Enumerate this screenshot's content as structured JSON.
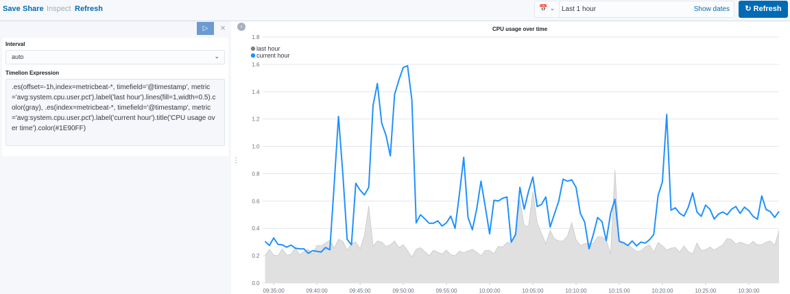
{
  "topnav": {
    "save": "Save",
    "share": "Share",
    "inspect": "Inspect",
    "refresh": "Refresh"
  },
  "datepicker": {
    "range": "Last 1 hour",
    "show_dates": "Show dates",
    "refresh_button": "Refresh",
    "icon": "calendar-icon"
  },
  "editor": {
    "interval_label": "Interval",
    "interval_value": "auto",
    "expression_label": "Timelion Expression",
    "expression": ".es(offset=-1h,index=metricbeat-*, timefield='@timestamp', metric='avg:system.cpu.user.pct').label('last hour').lines(fill=1,width=0.5).color(gray), .es(index=metricbeat-*, timefield='@timestamp', metric='avg:system.cpu.user.pct').label('current hour').title('CPU usage over time').color(#1E90FF)"
  },
  "chart_data": {
    "type": "line",
    "title": "CPU usage over time",
    "ylim": [
      0,
      1.8
    ],
    "yticks": [
      "0.0",
      "0.2",
      "0.4",
      "0.6",
      "0.8",
      "1.0",
      "1.2",
      "1.4",
      "1.6",
      "1.8"
    ],
    "xlim": [
      "09:34:00",
      "10:33:30"
    ],
    "xticks": [
      "09:35:00",
      "09:40:00",
      "09:45:00",
      "09:50:00",
      "09:55:00",
      "10:00:00",
      "10:05:00",
      "10:10:00",
      "10:15:00",
      "10:20:00",
      "10:25:00",
      "10:30:00"
    ],
    "grid": true,
    "legend": "top-left",
    "x": [
      "09:34:00",
      "09:34:30",
      "09:35:00",
      "09:35:30",
      "09:36:00",
      "09:36:30",
      "09:37:00",
      "09:37:30",
      "09:38:00",
      "09:38:30",
      "09:39:00",
      "09:39:30",
      "09:40:00",
      "09:40:30",
      "09:41:00",
      "09:41:30",
      "09:42:00",
      "09:42:30",
      "09:43:00",
      "09:43:30",
      "09:44:00",
      "09:44:30",
      "09:45:00",
      "09:45:30",
      "09:46:00",
      "09:46:30",
      "09:47:00",
      "09:47:30",
      "09:48:00",
      "09:48:30",
      "09:49:00",
      "09:49:30",
      "09:50:00",
      "09:50:30",
      "09:51:00",
      "09:51:30",
      "09:52:00",
      "09:52:30",
      "09:53:00",
      "09:53:30",
      "09:54:00",
      "09:54:30",
      "09:55:00",
      "09:55:30",
      "09:56:00",
      "09:56:30",
      "09:57:00",
      "09:57:30",
      "09:58:00",
      "09:58:30",
      "09:59:00",
      "09:59:30",
      "10:00:00",
      "10:00:30",
      "10:01:00",
      "10:01:30",
      "10:02:00",
      "10:02:30",
      "10:03:00",
      "10:03:30",
      "10:04:00",
      "10:04:30",
      "10:05:00",
      "10:05:30",
      "10:06:00",
      "10:06:30",
      "10:07:00",
      "10:07:30",
      "10:08:00",
      "10:08:30",
      "10:09:00",
      "10:09:30",
      "10:10:00",
      "10:10:30",
      "10:11:00",
      "10:11:30",
      "10:12:00",
      "10:12:30",
      "10:13:00",
      "10:13:30",
      "10:14:00",
      "10:14:30",
      "10:15:00",
      "10:15:30",
      "10:16:00",
      "10:16:30",
      "10:17:00",
      "10:17:30",
      "10:18:00",
      "10:18:30",
      "10:19:00",
      "10:19:30",
      "10:20:00",
      "10:20:30",
      "10:21:00",
      "10:21:30",
      "10:22:00",
      "10:22:30",
      "10:23:00",
      "10:23:30",
      "10:24:00",
      "10:24:30",
      "10:25:00",
      "10:25:30",
      "10:26:00",
      "10:26:30",
      "10:27:00",
      "10:27:30",
      "10:28:00",
      "10:28:30",
      "10:29:00",
      "10:29:30",
      "10:30:00",
      "10:30:30",
      "10:31:00",
      "10:31:30",
      "10:32:00",
      "10:32:30",
      "10:33:00",
      "10:33:30"
    ],
    "series": [
      {
        "name": "last hour",
        "color": "#808080",
        "fill": 1,
        "values": [
          0.2,
          0.247,
          0.205,
          0.2,
          0.25,
          0.205,
          0.21,
          0.26,
          0.205,
          0.23,
          0.247,
          0.213,
          0.275,
          0.272,
          0.293,
          0.313,
          0.255,
          0.32,
          0.305,
          0.24,
          0.29,
          0.3,
          0.25,
          0.35,
          0.563,
          0.27,
          0.308,
          0.3,
          0.267,
          0.28,
          0.308,
          0.258,
          0.28,
          0.238,
          0.188,
          0.247,
          0.258,
          0.23,
          0.2,
          0.24,
          0.225,
          0.213,
          0.24,
          0.208,
          0.2,
          0.233,
          0.222,
          0.235,
          0.247,
          0.225,
          0.2,
          0.24,
          0.238,
          0.213,
          0.268,
          0.263,
          0.297,
          0.292,
          0.372,
          0.613,
          0.42,
          0.413,
          0.67,
          0.44,
          0.363,
          0.288,
          0.385,
          0.322,
          0.308,
          0.308,
          0.342,
          0.442,
          0.318,
          0.275,
          0.288,
          0.292,
          0.288,
          0.338,
          0.338,
          0.313,
          0.213,
          0.827,
          0.305,
          0.283,
          0.28,
          0.255,
          0.23,
          0.235,
          0.263,
          0.28,
          0.225,
          0.297,
          0.272,
          0.242,
          0.255,
          0.26,
          0.225,
          0.272,
          0.23,
          0.213,
          0.293,
          0.238,
          0.243,
          0.263,
          0.242,
          0.26,
          0.28,
          0.327,
          0.318,
          0.285,
          0.3,
          0.288,
          0.277,
          0.305,
          0.28,
          0.28,
          0.3,
          0.308,
          0.275,
          0.385
        ]
      },
      {
        "name": "current hour",
        "color": "#1E90FF",
        "values": [
          0.305,
          0.275,
          0.33,
          0.283,
          0.28,
          0.262,
          0.278,
          0.255,
          0.25,
          0.25,
          0.217,
          0.237,
          0.232,
          0.227,
          0.26,
          0.243,
          0.72,
          1.22,
          0.8,
          0.32,
          0.28,
          0.73,
          0.68,
          0.645,
          0.7,
          1.3,
          1.46,
          1.17,
          1.08,
          0.93,
          1.38,
          1.485,
          1.577,
          1.59,
          1.34,
          0.44,
          0.5,
          0.47,
          0.437,
          0.437,
          0.455,
          0.417,
          0.44,
          0.49,
          0.4,
          0.65,
          0.92,
          0.48,
          0.39,
          0.54,
          0.745,
          0.555,
          0.36,
          0.605,
          0.6,
          0.62,
          0.63,
          0.3,
          0.355,
          0.7,
          0.54,
          0.67,
          0.775,
          0.56,
          0.575,
          0.63,
          0.41,
          0.505,
          0.6,
          0.76,
          0.745,
          0.755,
          0.7,
          0.51,
          0.445,
          0.25,
          0.355,
          0.48,
          0.45,
          0.31,
          0.51,
          0.613,
          0.305,
          0.295,
          0.275,
          0.308,
          0.272,
          0.3,
          0.292,
          0.317,
          0.355,
          0.64,
          0.74,
          1.233,
          0.533,
          0.55,
          0.51,
          0.49,
          0.555,
          0.66,
          0.52,
          0.488,
          0.57,
          0.54,
          0.468,
          0.505,
          0.52,
          0.5,
          0.54,
          0.56,
          0.51,
          0.555,
          0.53,
          0.488,
          0.467,
          0.638,
          0.538,
          0.522,
          0.48,
          0.525
        ]
      }
    ]
  }
}
